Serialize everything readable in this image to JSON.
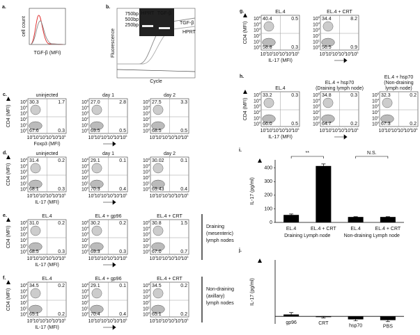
{
  "figure": {
    "log_axis": {
      "base": "10",
      "exponents": [
        "0",
        "1",
        "2",
        "3",
        "4",
        "5"
      ]
    },
    "a": {
      "label": "a.",
      "ylabel": "cell count",
      "xlabel": "TGF-β (MFI)"
    },
    "b": {
      "label": "b.",
      "ylabel": "Fluorescence",
      "xlabel": "Cycle",
      "gel_sizes": [
        "750bp",
        "500bp",
        "250bp"
      ],
      "gel_lanes": [
        "HPRT",
        "TGF-β"
      ],
      "curve_labels": [
        "TGF-β",
        "HPRT"
      ]
    },
    "c": {
      "label": "c.",
      "ylabel": "CD4 (MFI)",
      "xlabel": "Foxp3 (MFI)",
      "plots": [
        {
          "title": [
            "uninjected"
          ],
          "quadrants": [
            "30.3",
            "1.7",
            "67.6",
            "0.3"
          ]
        },
        {
          "title": [
            "day 1"
          ],
          "quadrants": [
            "27.0",
            "2.8",
            "69.5",
            "0.5"
          ]
        },
        {
          "title": [
            "day 2"
          ],
          "quadrants": [
            "27.5",
            "3.3",
            "68.5",
            "0.5"
          ]
        }
      ]
    },
    "d": {
      "label": "d.",
      "ylabel": "CD4 (MFI)",
      "xlabel": "IL-17 (MFI)",
      "plots": [
        {
          "title": [
            "uninjected"
          ],
          "quadrants": [
            "31.4",
            "0.2",
            "68.1",
            "0.3"
          ]
        },
        {
          "title": [
            "day 1"
          ],
          "quadrants": [
            "29.1",
            "0.1",
            "70.3",
            "0.4"
          ]
        },
        {
          "title": [
            "day 2"
          ],
          "quadrants": [
            "30.02",
            "0.1",
            "69.43",
            "0.4"
          ]
        }
      ]
    },
    "e": {
      "label": "e.",
      "ylabel": "CD4 (MFI)",
      "xlabel": "IL-17 (MFI)",
      "side_label": [
        "Draining",
        "(mesenteric)",
        "lymph nodes"
      ],
      "plots": [
        {
          "title": [
            "EL.4"
          ],
          "quadrants": [
            "31.0",
            "0.2",
            "68.5",
            "0.3"
          ]
        },
        {
          "title": [
            "EL.4 + gp96"
          ],
          "quadrants": [
            "30.2",
            "0.2",
            "69.3",
            "0.3"
          ]
        },
        {
          "title": [
            "EL.4 + CRT"
          ],
          "quadrants": [
            "30.8",
            "1.5",
            "67.0",
            "0.7"
          ]
        }
      ]
    },
    "f": {
      "label": "f.",
      "ylabel": "CD4 (MFI)",
      "xlabel": "IL-17 (MFI)",
      "side_label": [
        "Non-draining",
        "(axillary)",
        "lymph nodes"
      ],
      "plots": [
        {
          "title": [
            "EL.4"
          ],
          "quadrants": [
            "34.5",
            "0.2",
            "65.1",
            "0.2"
          ]
        },
        {
          "title": [
            "EL.4 + gp96"
          ],
          "quadrants": [
            "29.1",
            "0.1",
            "70.4",
            "0.4"
          ]
        },
        {
          "title": [
            "EL.4 + CRT"
          ],
          "quadrants": [
            "34.5",
            "0.2",
            "65.1",
            "0.2"
          ]
        }
      ]
    },
    "g": {
      "label": "g.",
      "ylabel": "CD4 (MFI)",
      "xlabel": "IL-17 (MFI)",
      "plots": [
        {
          "title": [
            "EL.4"
          ],
          "quadrants": [
            "40.4",
            "0.5",
            "58.8",
            "0.3"
          ]
        },
        {
          "title": [
            "EL.4 + CRT"
          ],
          "quadrants": [
            "34.4",
            "8.2",
            "56.5",
            "0.9"
          ]
        }
      ]
    },
    "h": {
      "label": "h.",
      "ylabel": "CD4 (MFI)",
      "xlabel": "IL-17 (MFI)",
      "plots": [
        {
          "title": [
            "EL.4"
          ],
          "quadrants": [
            "33.2",
            "0.3",
            "66.0",
            "0.5"
          ]
        },
        {
          "title": [
            "EL.4 + hsp70",
            "(Draining lymph node)"
          ],
          "quadrants": [
            "34.8",
            "0.3",
            "64.7",
            "0.2"
          ]
        },
        {
          "title": [
            "EL.4 + hsp70",
            "(Non-draining",
            "lymph node)"
          ],
          "quadrants": [
            "32.3",
            "0.2",
            "67.3",
            "0.2"
          ]
        }
      ]
    }
  },
  "chart_data": [
    {
      "type": "bar",
      "panel_label": "i.",
      "ylabel": "IL-17 (pg/ml)",
      "categories": [
        "EL.4",
        "EL.4 + CRT",
        "EL.4",
        "EL.4 + CRT"
      ],
      "values": [
        55,
        415,
        40,
        40
      ],
      "errors": [
        7,
        15,
        2,
        2
      ],
      "color": "#000000",
      "ylim": [
        0,
        460
      ],
      "yticks": [
        0,
        100,
        200,
        300,
        400
      ],
      "group_labels": [
        "Draining Lymph node",
        "Non-draining Lymph node"
      ],
      "annotations": [
        "**",
        "N.S."
      ]
    },
    {
      "type": "bar",
      "panel_label": "j.",
      "ylabel": "IL-17 (pg/ml)",
      "categories": [
        "gp96",
        "CRT",
        "hsp70",
        "PBS"
      ],
      "values": [
        5,
        -2,
        -8,
        -10
      ],
      "errors": [
        5,
        2,
        4,
        4
      ],
      "color": "#000000",
      "ylim": [
        -20,
        150
      ]
    }
  ]
}
